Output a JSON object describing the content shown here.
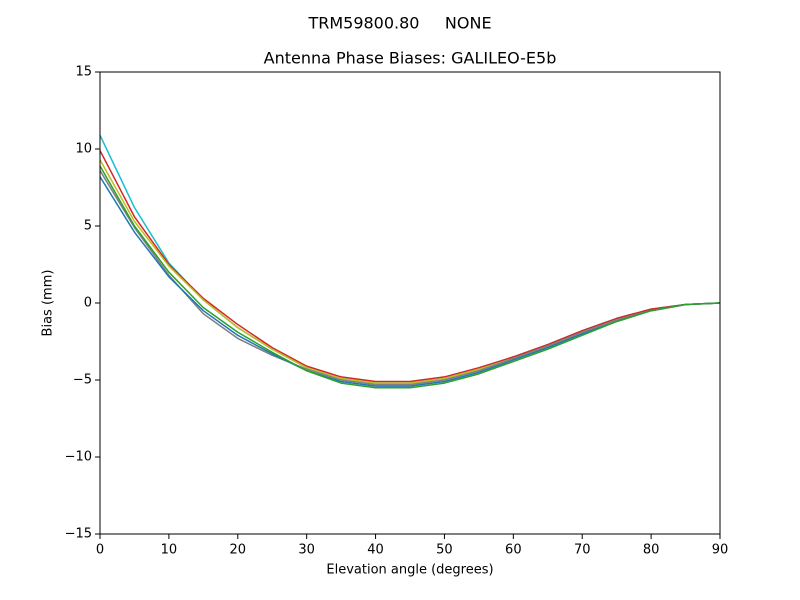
{
  "chart_data": {
    "type": "line",
    "suptitle": "TRM59800.80     NONE",
    "title": "Antenna Phase Biases: GALILEO-E5b",
    "xlabel": "Elevation angle (degrees)",
    "ylabel": "Bias (mm)",
    "x": [
      0,
      5,
      10,
      15,
      20,
      25,
      30,
      35,
      40,
      45,
      50,
      55,
      60,
      65,
      70,
      75,
      80,
      85,
      90
    ],
    "series": [
      {
        "color": "#17becf",
        "values": [
          10.9,
          6.2,
          2.6,
          0.2,
          -1.6,
          -3.0,
          -4.2,
          -4.9,
          -5.2,
          -5.2,
          -4.9,
          -4.3,
          -3.5,
          -2.7,
          -1.8,
          -1.0,
          -0.4,
          -0.1,
          0
        ]
      },
      {
        "color": "#d62728",
        "values": [
          9.9,
          5.6,
          2.5,
          0.3,
          -1.4,
          -2.9,
          -4.1,
          -4.8,
          -5.1,
          -5.1,
          -4.8,
          -4.2,
          -3.5,
          -2.7,
          -1.8,
          -1.0,
          -0.4,
          -0.1,
          0
        ]
      },
      {
        "color": "#bcbd22",
        "values": [
          9.3,
          5.3,
          2.4,
          0.2,
          -1.6,
          -3.0,
          -4.2,
          -4.9,
          -5.2,
          -5.2,
          -4.9,
          -4.3,
          -3.6,
          -2.8,
          -1.9,
          -1.1,
          -0.5,
          -0.1,
          0
        ]
      },
      {
        "color": "#7f7f7f",
        "values": [
          8.6,
          4.9,
          1.8,
          -0.7,
          -2.3,
          -3.4,
          -4.3,
          -5.0,
          -5.3,
          -5.3,
          -5.0,
          -4.4,
          -3.6,
          -2.8,
          -1.9,
          -1.1,
          -0.5,
          -0.1,
          0
        ]
      },
      {
        "color": "#1f77b4",
        "values": [
          8.2,
          4.6,
          1.7,
          -0.5,
          -2.1,
          -3.3,
          -4.4,
          -5.1,
          -5.4,
          -5.4,
          -5.1,
          -4.5,
          -3.7,
          -2.9,
          -2.0,
          -1.2,
          -0.5,
          -0.1,
          0
        ]
      },
      {
        "color": "#2ca02c",
        "values": [
          8.9,
          5.0,
          2.0,
          -0.3,
          -1.9,
          -3.2,
          -4.4,
          -5.2,
          -5.5,
          -5.5,
          -5.2,
          -4.6,
          -3.8,
          -3.0,
          -2.1,
          -1.2,
          -0.5,
          -0.1,
          0
        ]
      }
    ],
    "xlim": [
      0,
      90
    ],
    "xticks": [
      0,
      10,
      20,
      30,
      40,
      50,
      60,
      70,
      80,
      90
    ],
    "ylim": [
      -15,
      15
    ],
    "yticks": [
      {
        "value": -15,
        "label": "−15"
      },
      {
        "value": -10,
        "label": "−10"
      },
      {
        "value": -5,
        "label": "−5"
      },
      0,
      5,
      10,
      15
    ],
    "grid": false
  }
}
